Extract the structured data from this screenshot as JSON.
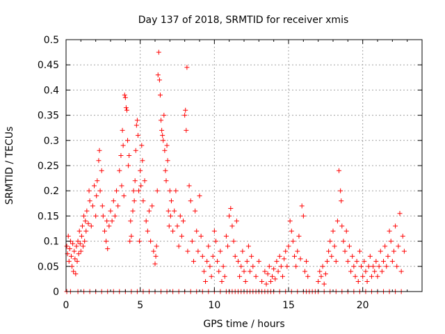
{
  "chart_data": {
    "type": "scatter",
    "title": "Day 137 of 2018, SRMTID for receiver xmis",
    "xlabel": "GPS time / hours",
    "ylabel": "SRMTID / TECUs",
    "xlim": [
      0,
      24
    ],
    "ylim": [
      0,
      0.5
    ],
    "xticks": [
      0,
      5,
      10,
      15,
      20
    ],
    "xtick_labels": [
      "0",
      "5",
      "10",
      "15",
      "20"
    ],
    "yticks": [
      0,
      0.05,
      0.1,
      0.15,
      0.2,
      0.25,
      0.3,
      0.35,
      0.4,
      0.45,
      0.5
    ],
    "ytick_labels": [
      "0",
      "0.05",
      "0.1",
      "0.15",
      "0.2",
      "0.25",
      "0.3",
      "0.35",
      "0.4",
      "0.45",
      "0.5"
    ],
    "grid": true,
    "marker": "+",
    "color": "#ff0000",
    "series": [
      {
        "name": "SRMTID",
        "points": [
          [
            0.05,
            0.09
          ],
          [
            0.1,
            0.075
          ],
          [
            0.15,
            0.11
          ],
          [
            0.2,
            0.06
          ],
          [
            0.25,
            0.085
          ],
          [
            0.3,
            0.1
          ],
          [
            0.35,
            0.07
          ],
          [
            0.4,
            0.05
          ],
          [
            0.45,
            0.095
          ],
          [
            0.5,
            0.04
          ],
          [
            0.55,
            0.08
          ],
          [
            0.6,
            0.065
          ],
          [
            0.65,
            0.035
          ],
          [
            0.7,
            0.09
          ],
          [
            0.75,
            0.06
          ],
          [
            0.8,
            0.1
          ],
          [
            0.85,
            0.075
          ],
          [
            0.9,
            0.12
          ],
          [
            0.95,
            0.095
          ],
          [
            1.0,
            0.08
          ],
          [
            1.05,
            0.11
          ],
          [
            1.1,
            0.13
          ],
          [
            1.15,
            0.09
          ],
          [
            1.2,
            0.15
          ],
          [
            1.25,
            0.1
          ],
          [
            1.3,
            0.14
          ],
          [
            1.35,
            0.12
          ],
          [
            1.4,
            0.16
          ],
          [
            1.5,
            0.135
          ],
          [
            1.55,
            0.2
          ],
          [
            1.6,
            0.18
          ],
          [
            1.7,
            0.13
          ],
          [
            1.8,
            0.17
          ],
          [
            1.9,
            0.21
          ],
          [
            2.0,
            0.15
          ],
          [
            2.05,
            0.19
          ],
          [
            2.1,
            0.22
          ],
          [
            2.2,
            0.26
          ],
          [
            2.25,
            0.28
          ],
          [
            2.3,
            0.2
          ],
          [
            2.4,
            0.24
          ],
          [
            2.45,
            0.17
          ],
          [
            2.5,
            0.15
          ],
          [
            2.6,
            0.12
          ],
          [
            2.7,
            0.1
          ],
          [
            2.75,
            0.14
          ],
          [
            2.8,
            0.085
          ],
          [
            2.9,
            0.13
          ],
          [
            3.0,
            0.16
          ],
          [
            3.1,
            0.14
          ],
          [
            3.2,
            0.18
          ],
          [
            3.3,
            0.15
          ],
          [
            3.4,
            0.2
          ],
          [
            3.5,
            0.17
          ],
          [
            3.6,
            0.24
          ],
          [
            3.7,
            0.27
          ],
          [
            3.75,
            0.21
          ],
          [
            3.8,
            0.32
          ],
          [
            3.85,
            0.29
          ],
          [
            3.9,
            0.19
          ],
          [
            3.95,
            0.39
          ],
          [
            4.0,
            0.385
          ],
          [
            4.05,
            0.365
          ],
          [
            4.1,
            0.36
          ],
          [
            4.15,
            0.3
          ],
          [
            4.2,
            0.25
          ],
          [
            4.25,
            0.27
          ],
          [
            4.3,
            0.1
          ],
          [
            4.35,
            0.14
          ],
          [
            4.4,
            0.11
          ],
          [
            4.5,
            0.16
          ],
          [
            4.55,
            0.2
          ],
          [
            4.6,
            0.18
          ],
          [
            4.65,
            0.22
          ],
          [
            4.7,
            0.28
          ],
          [
            4.75,
            0.33
          ],
          [
            4.8,
            0.34
          ],
          [
            4.85,
            0.31
          ],
          [
            4.9,
            0.2
          ],
          [
            4.95,
            0.1
          ],
          [
            5.0,
            0.24
          ],
          [
            5.05,
            0.21
          ],
          [
            5.1,
            0.29
          ],
          [
            5.15,
            0.26
          ],
          [
            5.2,
            0.18
          ],
          [
            5.3,
            0.22
          ],
          [
            5.4,
            0.14
          ],
          [
            5.5,
            0.12
          ],
          [
            5.6,
            0.16
          ],
          [
            5.7,
            0.1
          ],
          [
            5.8,
            0.17
          ],
          [
            5.9,
            0.08
          ],
          [
            6.0,
            0.055
          ],
          [
            6.05,
            0.07
          ],
          [
            6.1,
            0.09
          ],
          [
            6.15,
            0.2
          ],
          [
            6.2,
            0.43
          ],
          [
            6.25,
            0.475
          ],
          [
            6.3,
            0.42
          ],
          [
            6.35,
            0.39
          ],
          [
            6.4,
            0.34
          ],
          [
            6.45,
            0.32
          ],
          [
            6.5,
            0.31
          ],
          [
            6.55,
            0.3
          ],
          [
            6.6,
            0.35
          ],
          [
            6.65,
            0.28
          ],
          [
            6.7,
            0.24
          ],
          [
            6.75,
            0.22
          ],
          [
            6.8,
            0.29
          ],
          [
            6.85,
            0.26
          ],
          [
            6.9,
            0.16
          ],
          [
            6.95,
            0.13
          ],
          [
            7.0,
            0.2
          ],
          [
            7.05,
            0.15
          ],
          [
            7.1,
            0.18
          ],
          [
            7.2,
            0.12
          ],
          [
            7.3,
            0.16
          ],
          [
            7.4,
            0.2
          ],
          [
            7.5,
            0.13
          ],
          [
            7.6,
            0.09
          ],
          [
            7.7,
            0.15
          ],
          [
            7.8,
            0.11
          ],
          [
            7.9,
            0.14
          ],
          [
            8.0,
            0.35
          ],
          [
            8.05,
            0.36
          ],
          [
            8.1,
            0.32
          ],
          [
            8.15,
            0.445
          ],
          [
            8.2,
            0.08
          ],
          [
            8.3,
            0.21
          ],
          [
            8.4,
            0.18
          ],
          [
            8.5,
            0.1
          ],
          [
            8.6,
            0.06
          ],
          [
            8.7,
            0.16
          ],
          [
            8.8,
            0.12
          ],
          [
            8.9,
            0.08
          ],
          [
            9.0,
            0.19
          ],
          [
            9.1,
            0.11
          ],
          [
            9.2,
            0.07
          ],
          [
            9.3,
            0.04
          ],
          [
            9.4,
            0.02
          ],
          [
            9.5,
            0.06
          ],
          [
            9.6,
            0.09
          ],
          [
            9.7,
            0.05
          ],
          [
            9.8,
            0.03
          ],
          [
            9.9,
            0.07
          ],
          [
            10.0,
            0.12
          ],
          [
            10.1,
            0.1
          ],
          [
            10.2,
            0.06
          ],
          [
            10.3,
            0.04
          ],
          [
            10.4,
            0.08
          ],
          [
            10.5,
            0.02
          ],
          [
            10.6,
            0.05
          ],
          [
            10.7,
            0.03
          ],
          [
            10.8,
            0.11
          ],
          [
            10.9,
            0.09
          ],
          [
            11.0,
            0.15
          ],
          [
            11.1,
            0.165
          ],
          [
            11.2,
            0.13
          ],
          [
            11.3,
            0.1
          ],
          [
            11.4,
            0.07
          ],
          [
            11.5,
            0.14
          ],
          [
            11.6,
            0.06
          ],
          [
            11.7,
            0.03
          ],
          [
            11.8,
            0.05
          ],
          [
            11.9,
            0.08
          ],
          [
            12.0,
            0.04
          ],
          [
            12.1,
            0.02
          ],
          [
            12.2,
            0.06
          ],
          [
            12.3,
            0.09
          ],
          [
            12.4,
            0.04
          ],
          [
            12.5,
            0.07
          ],
          [
            12.6,
            0.05
          ],
          [
            12.8,
            0.03
          ],
          [
            13.0,
            0.06
          ],
          [
            13.2,
            0.02
          ],
          [
            13.4,
            0.04
          ],
          [
            13.5,
            0.015
          ],
          [
            13.6,
            0.035
          ],
          [
            13.7,
            0.05
          ],
          [
            13.8,
            0.02
          ],
          [
            13.9,
            0.03
          ],
          [
            14.0,
            0.045
          ],
          [
            14.1,
            0.025
          ],
          [
            14.2,
            0.06
          ],
          [
            14.3,
            0.04
          ],
          [
            14.4,
            0.07
          ],
          [
            14.5,
            0.05
          ],
          [
            14.6,
            0.03
          ],
          [
            14.7,
            0.065
          ],
          [
            14.8,
            0.08
          ],
          [
            14.9,
            0.05
          ],
          [
            15.0,
            0.09
          ],
          [
            15.1,
            0.14
          ],
          [
            15.2,
            0.12
          ],
          [
            15.3,
            0.1
          ],
          [
            15.4,
            0.07
          ],
          [
            15.5,
            0.05
          ],
          [
            15.6,
            0.08
          ],
          [
            15.7,
            0.11
          ],
          [
            15.8,
            0.065
          ],
          [
            15.9,
            0.17
          ],
          [
            16.0,
            0.15
          ],
          [
            16.1,
            0.04
          ],
          [
            16.2,
            0.06
          ],
          [
            16.3,
            0.03
          ],
          [
            17.0,
            0.02
          ],
          [
            17.1,
            0.04
          ],
          [
            17.2,
            0.03
          ],
          [
            17.3,
            0.05
          ],
          [
            17.4,
            0.015
          ],
          [
            17.5,
            0.035
          ],
          [
            17.6,
            0.06
          ],
          [
            17.7,
            0.08
          ],
          [
            17.8,
            0.1
          ],
          [
            17.9,
            0.07
          ],
          [
            18.0,
            0.12
          ],
          [
            18.1,
            0.09
          ],
          [
            18.2,
            0.06
          ],
          [
            18.3,
            0.14
          ],
          [
            18.4,
            0.24
          ],
          [
            18.5,
            0.2
          ],
          [
            18.55,
            0.18
          ],
          [
            18.6,
            0.13
          ],
          [
            18.7,
            0.1
          ],
          [
            18.8,
            0.08
          ],
          [
            18.9,
            0.12
          ],
          [
            19.0,
            0.06
          ],
          [
            19.1,
            0.09
          ],
          [
            19.2,
            0.04
          ],
          [
            19.3,
            0.07
          ],
          [
            19.4,
            0.05
          ],
          [
            19.5,
            0.03
          ],
          [
            19.6,
            0.06
          ],
          [
            19.7,
            0.02
          ],
          [
            19.8,
            0.08
          ],
          [
            19.9,
            0.05
          ],
          [
            20.0,
            0.03
          ],
          [
            20.1,
            0.06
          ],
          [
            20.2,
            0.04
          ],
          [
            20.3,
            0.02
          ],
          [
            20.4,
            0.05
          ],
          [
            20.5,
            0.07
          ],
          [
            20.6,
            0.03
          ],
          [
            20.7,
            0.05
          ],
          [
            20.8,
            0.04
          ],
          [
            20.9,
            0.06
          ],
          [
            21.0,
            0.03
          ],
          [
            21.1,
            0.05
          ],
          [
            21.2,
            0.08
          ],
          [
            21.3,
            0.04
          ],
          [
            21.4,
            0.06
          ],
          [
            21.5,
            0.09
          ],
          [
            21.6,
            0.05
          ],
          [
            21.7,
            0.07
          ],
          [
            21.8,
            0.12
          ],
          [
            21.9,
            0.1
          ],
          [
            22.0,
            0.06
          ],
          [
            22.1,
            0.08
          ],
          [
            22.2,
            0.13
          ],
          [
            22.3,
            0.05
          ],
          [
            22.4,
            0.09
          ],
          [
            22.5,
            0.155
          ],
          [
            22.6,
            0.04
          ],
          [
            22.7,
            0.11
          ],
          [
            22.8,
            0.08
          ]
        ],
        "zero_points": [
          0.05,
          0.3,
          0.8,
          1.2,
          1.6,
          2.0,
          2.4,
          2.8,
          3.2,
          3.6,
          4.0,
          4.4,
          4.8,
          5.2,
          5.6,
          6.0,
          6.4,
          6.8,
          7.2,
          7.6,
          8.0,
          8.4,
          8.8,
          9.2,
          9.6,
          10.0,
          10.4,
          10.8,
          11.0,
          11.2,
          11.4,
          11.6,
          11.8,
          12.0,
          12.2,
          12.4,
          12.6,
          12.8,
          13.0,
          13.2,
          13.4,
          13.6,
          13.8,
          14.0,
          14.4,
          14.8,
          15.2,
          15.6,
          16.0,
          16.2,
          16.4,
          16.6,
          16.8,
          17.0,
          17.4,
          17.8,
          18.2,
          18.6,
          19.0,
          19.4,
          19.8,
          20.2,
          20.6,
          21.0,
          21.4,
          21.8,
          22.2,
          22.6
        ]
      }
    ]
  }
}
